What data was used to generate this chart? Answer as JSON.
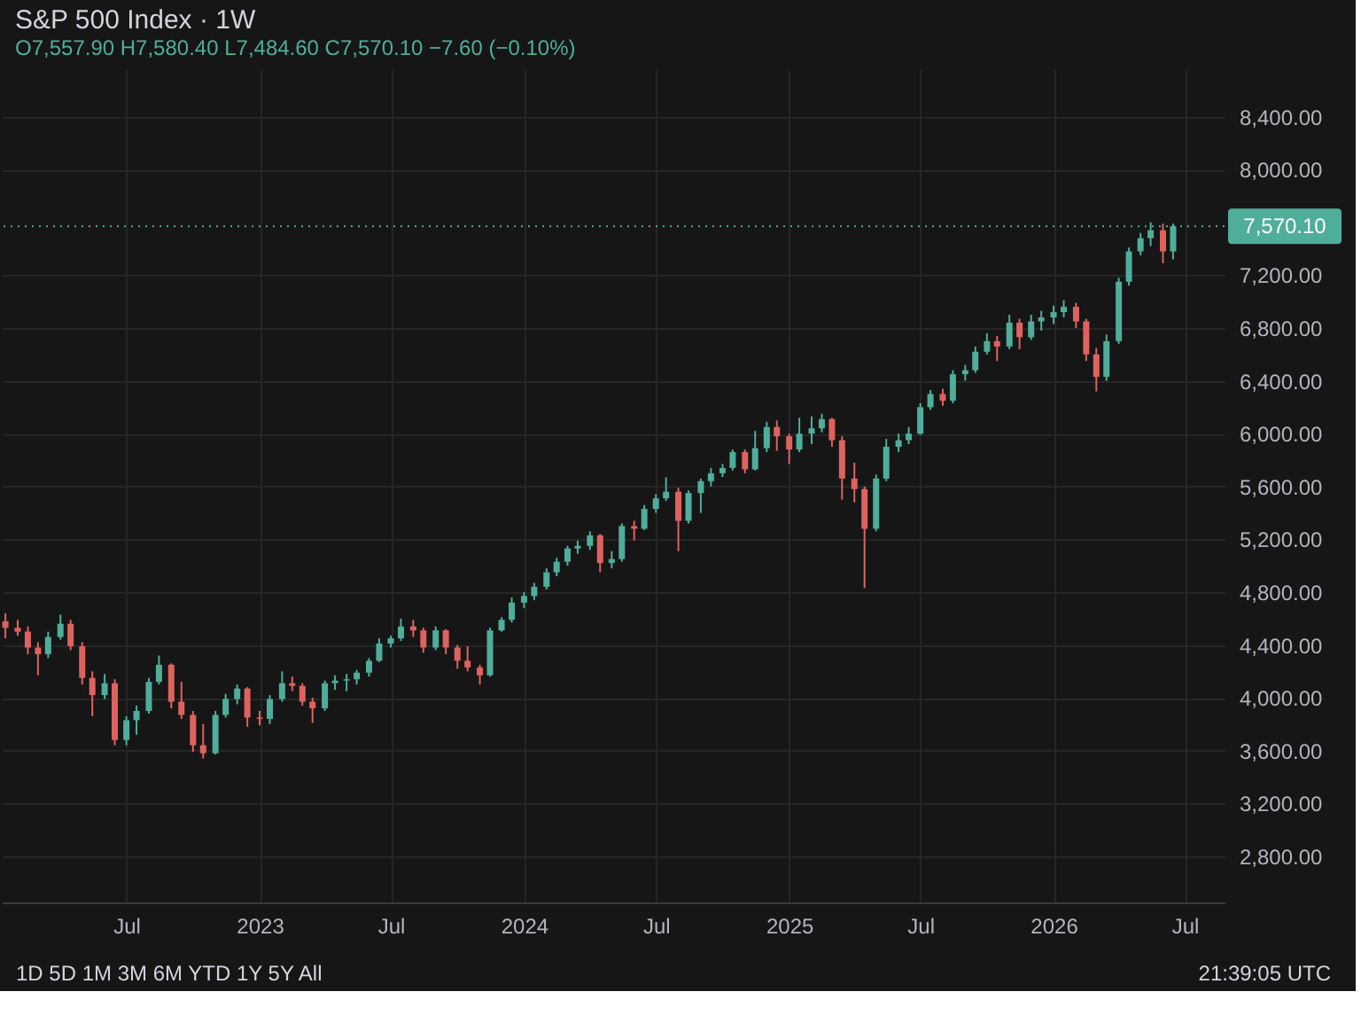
{
  "chart_data": {
    "type": "candlestick",
    "title": "S&P 500 Index · 1W",
    "subtitle": "O7,557.90 H7,580.40 L7,484.60 C7,570.10 −7.60 (−0.10%)",
    "x": [
      "2022-01-15",
      "2022-02-01",
      "2022-02-15",
      "2022-03-01",
      "2022-03-15",
      "2022-04-01",
      "2022-04-15",
      "2022-05-01",
      "2022-05-15",
      "2022-06-01",
      "2022-06-15",
      "2022-07-01",
      "2022-07-15",
      "2022-08-01",
      "2022-08-15",
      "2022-09-01",
      "2022-09-15",
      "2022-10-01",
      "2022-10-15",
      "2022-11-01",
      "2022-11-15",
      "2022-12-01",
      "2022-12-15",
      "2023-01-01",
      "2023-01-15",
      "2023-02-01",
      "2023-02-15",
      "2023-03-01",
      "2023-03-15",
      "2023-04-01",
      "2023-04-15",
      "2023-05-01",
      "2023-05-15",
      "2023-06-01",
      "2023-06-15",
      "2023-07-01",
      "2023-07-15",
      "2023-08-01",
      "2023-08-15",
      "2023-09-01",
      "2023-09-15",
      "2023-10-01",
      "2023-10-15",
      "2023-11-01",
      "2023-11-15",
      "2023-12-01",
      "2023-12-15",
      "2024-01-01",
      "2024-01-15",
      "2024-02-01",
      "2024-02-15",
      "2024-03-01",
      "2024-03-15",
      "2024-04-01",
      "2024-04-15",
      "2024-05-01",
      "2024-05-15",
      "2024-06-01",
      "2024-06-15",
      "2024-07-01",
      "2024-07-15",
      "2024-08-01",
      "2024-08-15",
      "2024-09-01",
      "2024-09-15",
      "2024-10-01",
      "2024-10-15",
      "2024-11-01",
      "2024-11-15",
      "2024-12-01",
      "2024-12-15",
      "2025-01-01",
      "2025-01-15",
      "2025-02-01",
      "2025-02-15",
      "2025-03-01",
      "2025-03-15",
      "2025-04-01",
      "2025-04-15",
      "2025-05-01",
      "2025-05-15",
      "2025-06-01",
      "2025-06-15",
      "2025-07-01",
      "2025-07-15",
      "2025-08-01",
      "2025-08-15",
      "2025-09-01",
      "2025-09-15",
      "2025-10-01",
      "2025-10-15",
      "2025-11-01",
      "2025-11-15",
      "2025-12-01",
      "2025-12-15",
      "2026-01-01",
      "2026-01-15",
      "2026-02-01",
      "2026-02-15",
      "2026-03-01",
      "2026-03-15",
      "2026-04-01",
      "2026-04-15",
      "2026-05-01",
      "2026-05-15",
      "2026-06-01",
      "2026-06-15"
    ],
    "ohlc": [
      [
        4580,
        4640,
        4450,
        4530
      ],
      [
        4530,
        4590,
        4470,
        4500
      ],
      [
        4500,
        4540,
        4330,
        4380
      ],
      [
        4380,
        4420,
        4170,
        4330
      ],
      [
        4330,
        4500,
        4300,
        4460
      ],
      [
        4460,
        4630,
        4440,
        4560
      ],
      [
        4560,
        4590,
        4360,
        4390
      ],
      [
        4390,
        4420,
        4100,
        4150
      ],
      [
        4150,
        4200,
        3860,
        4020
      ],
      [
        4020,
        4180,
        3990,
        4110
      ],
      [
        4110,
        4140,
        3640,
        3680
      ],
      [
        3680,
        3860,
        3640,
        3830
      ],
      [
        3830,
        3940,
        3720,
        3900
      ],
      [
        3900,
        4150,
        3880,
        4120
      ],
      [
        4120,
        4320,
        4100,
        4250
      ],
      [
        4250,
        4260,
        3920,
        3970
      ],
      [
        3970,
        4120,
        3840,
        3870
      ],
      [
        3870,
        3900,
        3590,
        3640
      ],
      [
        3640,
        3800,
        3540,
        3580
      ],
      [
        3580,
        3900,
        3570,
        3870
      ],
      [
        3870,
        4030,
        3850,
        3990
      ],
      [
        3990,
        4100,
        3950,
        4070
      ],
      [
        4070,
        4080,
        3780,
        3850
      ],
      [
        3850,
        3900,
        3790,
        3840
      ],
      [
        3840,
        4020,
        3800,
        3990
      ],
      [
        3990,
        4200,
        3970,
        4110
      ],
      [
        4110,
        4160,
        4050,
        4090
      ],
      [
        4090,
        4110,
        3940,
        3970
      ],
      [
        3970,
        4000,
        3810,
        3920
      ],
      [
        3920,
        4130,
        3900,
        4110
      ],
      [
        4110,
        4170,
        4060,
        4130
      ],
      [
        4130,
        4180,
        4050,
        4140
      ],
      [
        4140,
        4210,
        4100,
        4190
      ],
      [
        4190,
        4300,
        4160,
        4280
      ],
      [
        4280,
        4450,
        4270,
        4410
      ],
      [
        4410,
        4470,
        4380,
        4450
      ],
      [
        4450,
        4600,
        4430,
        4540
      ],
      [
        4540,
        4590,
        4460,
        4510
      ],
      [
        4510,
        4530,
        4340,
        4380
      ],
      [
        4380,
        4540,
        4360,
        4510
      ],
      [
        4510,
        4520,
        4330,
        4380
      ],
      [
        4380,
        4400,
        4220,
        4280
      ],
      [
        4280,
        4390,
        4200,
        4230
      ],
      [
        4230,
        4250,
        4100,
        4170
      ],
      [
        4170,
        4530,
        4160,
        4510
      ],
      [
        4510,
        4610,
        4500,
        4590
      ],
      [
        4590,
        4760,
        4570,
        4720
      ],
      [
        4720,
        4800,
        4680,
        4770
      ],
      [
        4770,
        4870,
        4740,
        4840
      ],
      [
        4840,
        4980,
        4820,
        4950
      ],
      [
        4950,
        5060,
        4920,
        5030
      ],
      [
        5030,
        5150,
        5000,
        5130
      ],
      [
        5130,
        5190,
        5090,
        5150
      ],
      [
        5150,
        5260,
        5120,
        5230
      ],
      [
        5230,
        5240,
        4950,
        5020
      ],
      [
        5020,
        5110,
        4980,
        5050
      ],
      [
        5050,
        5320,
        5030,
        5300
      ],
      [
        5300,
        5340,
        5190,
        5280
      ],
      [
        5280,
        5460,
        5270,
        5430
      ],
      [
        5430,
        5540,
        5400,
        5510
      ],
      [
        5510,
        5670,
        5490,
        5560
      ],
      [
        5560,
        5590,
        5110,
        5340
      ],
      [
        5340,
        5570,
        5320,
        5550
      ],
      [
        5550,
        5660,
        5400,
        5640
      ],
      [
        5640,
        5740,
        5600,
        5700
      ],
      [
        5700,
        5770,
        5670,
        5740
      ],
      [
        5740,
        5880,
        5720,
        5860
      ],
      [
        5860,
        5880,
        5700,
        5730
      ],
      [
        5730,
        6020,
        5720,
        5890
      ],
      [
        5890,
        6090,
        5860,
        6050
      ],
      [
        6050,
        6100,
        5870,
        5980
      ],
      [
        5980,
        6000,
        5770,
        5880
      ],
      [
        5880,
        6120,
        5860,
        6000
      ],
      [
        6000,
        6130,
        5920,
        6040
      ],
      [
        6040,
        6150,
        6010,
        6110
      ],
      [
        6110,
        6120,
        5900,
        5950
      ],
      [
        5950,
        5980,
        5500,
        5660
      ],
      [
        5660,
        5780,
        5480,
        5580
      ],
      [
        5580,
        5600,
        4830,
        5280
      ],
      [
        5280,
        5690,
        5260,
        5660
      ],
      [
        5660,
        5960,
        5640,
        5900
      ],
      [
        5900,
        6000,
        5860,
        5950
      ],
      [
        5950,
        6050,
        5920,
        6000
      ],
      [
        6000,
        6230,
        5990,
        6200
      ],
      [
        6200,
        6330,
        6180,
        6300
      ],
      [
        6300,
        6340,
        6210,
        6250
      ],
      [
        6250,
        6480,
        6230,
        6450
      ],
      [
        6450,
        6520,
        6400,
        6480
      ],
      [
        6480,
        6660,
        6460,
        6620
      ],
      [
        6620,
        6760,
        6600,
        6700
      ],
      [
        6700,
        6740,
        6550,
        6660
      ],
      [
        6660,
        6900,
        6640,
        6840
      ],
      [
        6840,
        6870,
        6640,
        6730
      ],
      [
        6730,
        6900,
        6710,
        6850
      ],
      [
        6850,
        6930,
        6780,
        6880
      ],
      [
        6880,
        6970,
        6830,
        6920
      ],
      [
        6920,
        7010,
        6880,
        6960
      ],
      [
        6960,
        6990,
        6800,
        6850
      ],
      [
        6850,
        6870,
        6550,
        6600
      ],
      [
        6600,
        6650,
        6320,
        6430
      ],
      [
        6430,
        6750,
        6400,
        6700
      ],
      [
        6700,
        7180,
        6680,
        7150
      ],
      [
        7150,
        7410,
        7120,
        7380
      ],
      [
        7380,
        7520,
        7350,
        7480
      ],
      [
        7480,
        7600,
        7420,
        7540
      ],
      [
        7540,
        7590,
        7290,
        7380
      ],
      [
        7380,
        7590,
        7320,
        7570.1
      ]
    ],
    "colors": [
      "#e0625f",
      "#e0625f",
      "#e0625f",
      "#e0625f",
      "#4fae9b",
      "#4fae9b",
      "#e0625f",
      "#e0625f",
      "#e0625f",
      "#4fae9b",
      "#e0625f",
      "#4fae9b",
      "#4fae9b",
      "#4fae9b",
      "#4fae9b",
      "#e0625f",
      "#e0625f",
      "#e0625f",
      "#e0625f",
      "#4fae9b",
      "#4fae9b",
      "#4fae9b",
      "#e0625f",
      "#e0625f",
      "#4fae9b",
      "#4fae9b",
      "#e0625f",
      "#e0625f",
      "#e0625f",
      "#4fae9b",
      "#4fae9b",
      "#4fae9b",
      "#4fae9b",
      "#4fae9b",
      "#4fae9b",
      "#4fae9b",
      "#4fae9b",
      "#e0625f",
      "#e0625f",
      "#4fae9b",
      "#e0625f",
      "#e0625f",
      "#e0625f",
      "#e0625f",
      "#4fae9b",
      "#4fae9b",
      "#4fae9b",
      "#4fae9b",
      "#4fae9b",
      "#4fae9b",
      "#4fae9b",
      "#4fae9b",
      "#4fae9b",
      "#4fae9b",
      "#e0625f",
      "#4fae9b",
      "#4fae9b",
      "#e0625f",
      "#4fae9b",
      "#4fae9b",
      "#4fae9b",
      "#e0625f",
      "#4fae9b",
      "#4fae9b",
      "#4fae9b",
      "#4fae9b",
      "#4fae9b",
      "#e0625f",
      "#4fae9b",
      "#4fae9b",
      "#e0625f",
      "#e0625f",
      "#4fae9b",
      "#4fae9b",
      "#4fae9b",
      "#e0625f",
      "#e0625f",
      "#e0625f",
      "#e0625f",
      "#4fae9b",
      "#4fae9b",
      "#4fae9b",
      "#4fae9b",
      "#4fae9b",
      "#4fae9b",
      "#e0625f",
      "#4fae9b",
      "#4fae9b",
      "#4fae9b",
      "#4fae9b",
      "#e0625f",
      "#4fae9b",
      "#e0625f",
      "#4fae9b",
      "#4fae9b",
      "#4fae9b",
      "#4fae9b",
      "#e0625f",
      "#e0625f",
      "#e0625f",
      "#4fae9b",
      "#4fae9b",
      "#4fae9b",
      "#4fae9b",
      "#4fae9b",
      "#e0625f",
      "#4fae9b"
    ],
    "xlim": [
      "2022-01-10",
      "2026-08-25"
    ],
    "xticks": [
      {
        "value": "2022-07-01",
        "label": "Jul"
      },
      {
        "value": "2023-01-01",
        "label": "2023"
      },
      {
        "value": "2023-07-01",
        "label": "Jul"
      },
      {
        "value": "2024-01-01",
        "label": "2024"
      },
      {
        "value": "2024-07-01",
        "label": "Jul"
      },
      {
        "value": "2025-01-01",
        "label": "2025"
      },
      {
        "value": "2025-07-01",
        "label": "Jul"
      },
      {
        "value": "2026-01-01",
        "label": "2026"
      },
      {
        "value": "2026-07-01",
        "label": "Jul"
      }
    ],
    "ylim": [
      2450,
      8760
    ],
    "yticks": [
      {
        "value": 2800,
        "label": "2,800.00"
      },
      {
        "value": 3200,
        "label": "3,200.00"
      },
      {
        "value": 3600,
        "label": "3,600.00"
      },
      {
        "value": 4000,
        "label": "4,000.00"
      },
      {
        "value": 4400,
        "label": "4,400.00"
      },
      {
        "value": 4800,
        "label": "4,800.00"
      },
      {
        "value": 5200,
        "label": "5,200.00"
      },
      {
        "value": 5600,
        "label": "5,600.00"
      },
      {
        "value": 6000,
        "label": "6,000.00"
      },
      {
        "value": 6400,
        "label": "6,400.00"
      },
      {
        "value": 6800,
        "label": "6,800.00"
      },
      {
        "value": 7200,
        "label": "7,200.00"
      },
      {
        "value": 8000,
        "label": "8,000.00"
      },
      {
        "value": 8400,
        "label": "8,400.00"
      }
    ],
    "grid": true,
    "ref_lines": [
      {
        "axis": "y",
        "value": 7570.1,
        "label": "7,570.10",
        "color": "#4fae9b",
        "line_style": "dotted"
      }
    ],
    "annotations": [
      "1D  5D  1M  3M  6M  YTD  1Y  5Y  All",
      "21:39:05 UTC"
    ]
  }
}
